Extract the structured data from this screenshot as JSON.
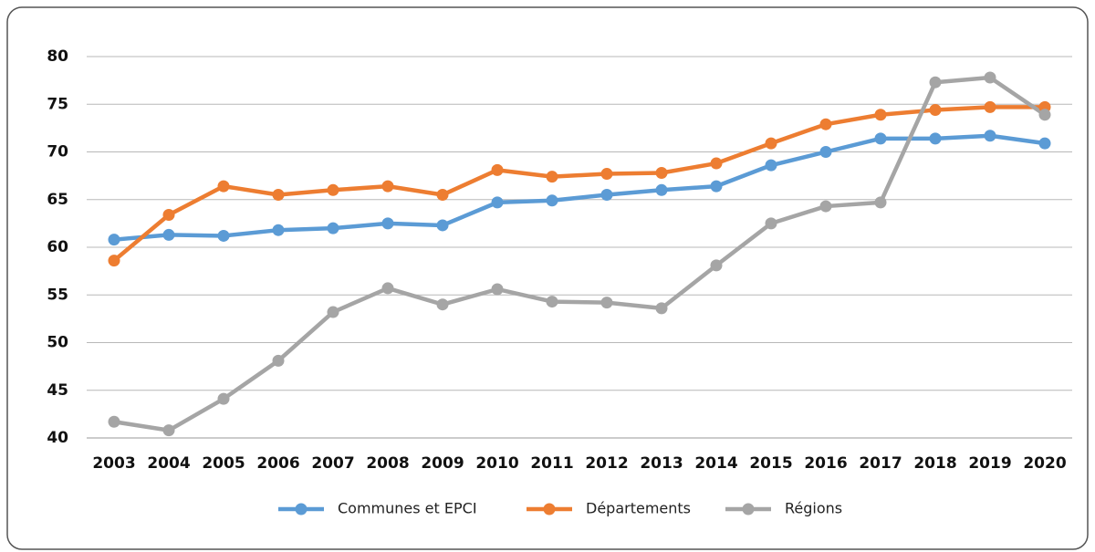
{
  "chart_data": {
    "type": "line",
    "categories": [
      "2003",
      "2004",
      "2005",
      "2006",
      "2007",
      "2008",
      "2009",
      "2010",
      "2011",
      "2012",
      "2013",
      "2014",
      "2015",
      "2016",
      "2017",
      "2018",
      "2019",
      "2020"
    ],
    "series": [
      {
        "name": "Communes et EPCI",
        "color": "#5b9bd5",
        "values": [
          60.8,
          61.3,
          61.2,
          61.8,
          62.0,
          62.5,
          62.3,
          64.7,
          64.9,
          65.5,
          66.0,
          66.4,
          68.6,
          70.0,
          71.4,
          71.4,
          71.7,
          70.9
        ]
      },
      {
        "name": "Départements",
        "color": "#ed7d31",
        "values": [
          58.6,
          63.4,
          66.4,
          65.5,
          66.0,
          66.4,
          65.5,
          68.1,
          67.4,
          67.7,
          67.8,
          68.8,
          70.9,
          72.9,
          73.9,
          74.4,
          74.7,
          74.7
        ]
      },
      {
        "name": "Régions",
        "color": "#a5a5a5",
        "values": [
          41.7,
          40.8,
          44.1,
          48.1,
          53.2,
          55.7,
          54.0,
          55.6,
          54.3,
          54.2,
          53.6,
          58.1,
          62.5,
          64.3,
          64.7,
          77.3,
          77.8,
          73.9
        ]
      }
    ],
    "ylim": [
      40,
      80
    ],
    "yticks": [
      40,
      45,
      50,
      55,
      60,
      65,
      70,
      75,
      80
    ],
    "grid": true,
    "legend": "bottom"
  }
}
